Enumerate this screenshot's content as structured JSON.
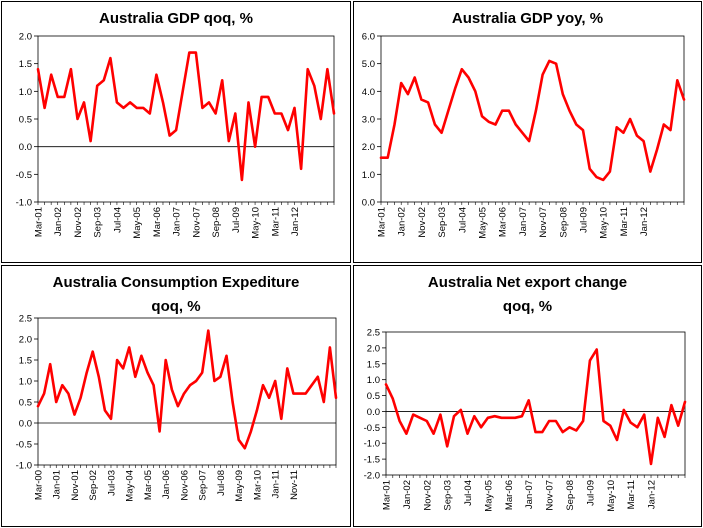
{
  "chart_data": [
    {
      "type": "line",
      "title": [
        "Australia GDP qoq, %"
      ],
      "xlabel": "",
      "ylabel": "",
      "ylim": [
        -1.0,
        2.0
      ],
      "y_ticks": [
        "2.0",
        "1.5",
        "1.0",
        "0.5",
        "0.0",
        "-0.5",
        "-1.0"
      ],
      "x_tick_labels": [
        "Mar-01",
        "Jan-02",
        "Nov-02",
        "Sep-03",
        "Jul-04",
        "May-05",
        "Mar-06",
        "Jan-07",
        "Nov-07",
        "Sep-08",
        "Jul-09",
        "May-10",
        "Mar-11",
        "Jan-12"
      ],
      "x_tick_every": 3,
      "series": [
        {
          "name": "GDP qoq",
          "color": "#ff0000",
          "values": [
            1.4,
            0.7,
            1.3,
            0.9,
            0.9,
            1.4,
            0.5,
            0.8,
            0.1,
            1.1,
            1.2,
            1.6,
            0.8,
            0.7,
            0.8,
            0.7,
            0.7,
            0.6,
            1.3,
            0.8,
            0.2,
            0.3,
            1.0,
            1.7,
            1.7,
            0.7,
            0.8,
            0.6,
            1.2,
            0.1,
            0.6,
            -0.6,
            0.8,
            0.0,
            0.9,
            0.9,
            0.6,
            0.6,
            0.3,
            0.7,
            -0.4,
            1.4,
            1.1,
            0.5,
            1.4,
            0.6
          ]
        }
      ]
    },
    {
      "type": "line",
      "title": [
        "Australia GDP yoy, %"
      ],
      "xlabel": "",
      "ylabel": "",
      "ylim": [
        0.0,
        6.0
      ],
      "y_ticks": [
        "6.0",
        "5.0",
        "4.0",
        "3.0",
        "2.0",
        "1.0",
        "0.0"
      ],
      "x_tick_labels": [
        "Mar-01",
        "Jan-02",
        "Nov-02",
        "Sep-03",
        "Jul-04",
        "May-05",
        "Mar-06",
        "Jan-07",
        "Nov-07",
        "Sep-08",
        "Jul-09",
        "May-10",
        "Mar-11",
        "Jan-12"
      ],
      "x_tick_every": 3,
      "series": [
        {
          "name": "GDP yoy",
          "color": "#ff0000",
          "values": [
            1.6,
            1.6,
            2.8,
            4.3,
            3.9,
            4.5,
            3.7,
            3.6,
            2.8,
            2.5,
            3.3,
            4.1,
            4.8,
            4.5,
            4.0,
            3.1,
            2.9,
            2.8,
            3.3,
            3.3,
            2.8,
            2.5,
            2.2,
            3.3,
            4.6,
            5.1,
            5.0,
            3.9,
            3.3,
            2.8,
            2.6,
            1.2,
            0.9,
            0.8,
            1.1,
            2.7,
            2.5,
            3.0,
            2.4,
            2.2,
            1.1,
            1.9,
            2.8,
            2.6,
            4.4,
            3.7
          ]
        }
      ]
    },
    {
      "type": "line",
      "title": [
        "Australia Consumption Expediture",
        "qoq, %"
      ],
      "xlabel": "",
      "ylabel": "",
      "ylim": [
        -1.0,
        2.5
      ],
      "y_ticks": [
        "2.5",
        "2.0",
        "1.5",
        "1.0",
        "0.5",
        "0.0",
        "-0.5",
        "-1.0"
      ],
      "x_tick_labels": [
        "Mar-00",
        "Jan-01",
        "Nov-01",
        "Sep-02",
        "Jul-03",
        "May-04",
        "Mar-05",
        "Jan-06",
        "Nov-06",
        "Sep-07",
        "Jul-08",
        "May-09",
        "Mar-10",
        "Jan-11",
        "Nov-11"
      ],
      "x_tick_every": 3,
      "series": [
        {
          "name": "Consumption qoq",
          "color": "#ff0000",
          "values": [
            0.4,
            0.7,
            1.4,
            0.5,
            0.9,
            0.7,
            0.2,
            0.6,
            1.2,
            1.7,
            1.1,
            0.3,
            0.1,
            1.5,
            1.3,
            1.8,
            1.1,
            1.6,
            1.2,
            0.9,
            -0.2,
            1.5,
            0.8,
            0.4,
            0.7,
            0.9,
            1.0,
            1.2,
            2.2,
            1.0,
            1.1,
            1.6,
            0.5,
            -0.4,
            -0.6,
            -0.2,
            0.3,
            0.9,
            0.6,
            1.0,
            0.1,
            1.3,
            0.7,
            0.7,
            0.7,
            0.9,
            1.1,
            0.5,
            1.8,
            0.6
          ]
        }
      ]
    },
    {
      "type": "line",
      "title": [
        "Australia Net export change",
        "qoq, %"
      ],
      "xlabel": "",
      "ylabel": "",
      "ylim": [
        -2.0,
        2.5
      ],
      "y_ticks": [
        "2.5",
        "2.0",
        "1.5",
        "1.0",
        "0.5",
        "0.0",
        "-0.5",
        "-1.0",
        "-1.5",
        "-2.0"
      ],
      "x_tick_labels": [
        "Mar-01",
        "Jan-02",
        "Nov-02",
        "Sep-03",
        "Jul-04",
        "May-05",
        "Mar-06",
        "Jan-07",
        "Nov-07",
        "Sep-08",
        "Jul-09",
        "May-10",
        "Mar-11",
        "Jan-12"
      ],
      "x_tick_every": 3,
      "series": [
        {
          "name": "Net export qoq",
          "color": "#ff0000",
          "values": [
            0.85,
            0.4,
            -0.3,
            -0.7,
            -0.1,
            -0.2,
            -0.3,
            -0.7,
            -0.1,
            -1.1,
            -0.15,
            0.05,
            -0.7,
            -0.15,
            -0.5,
            -0.2,
            -0.15,
            -0.2,
            -0.2,
            -0.2,
            -0.15,
            0.35,
            -0.65,
            -0.65,
            -0.3,
            -0.3,
            -0.65,
            -0.5,
            -0.6,
            -0.3,
            1.6,
            1.95,
            -0.3,
            -0.45,
            -0.9,
            0.05,
            -0.35,
            -0.5,
            -0.1,
            -1.65,
            -0.2,
            -0.8,
            0.2,
            -0.45,
            0.3
          ]
        }
      ]
    }
  ]
}
